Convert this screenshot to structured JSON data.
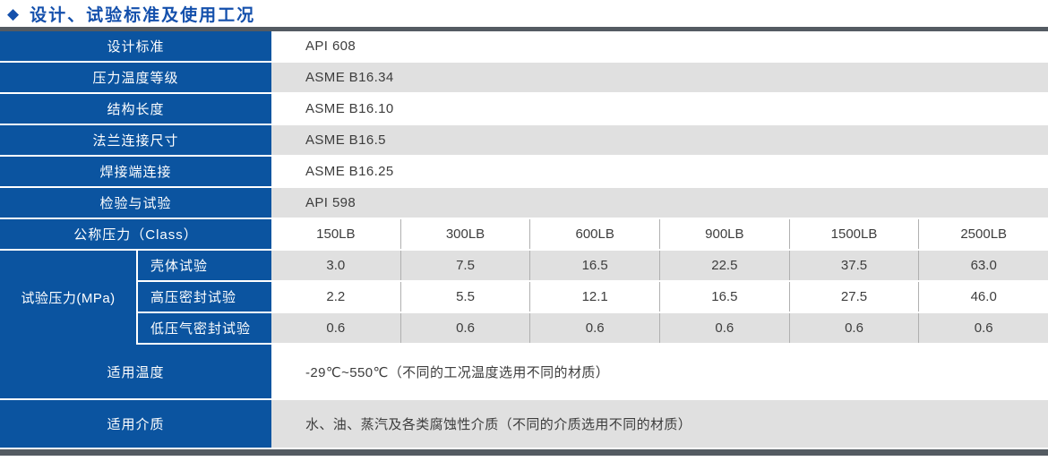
{
  "colors": {
    "brand_blue": "#0b54a0",
    "title_blue": "#1450ac",
    "row_gray": "#e0e0e0",
    "bar_dark": "#545b62",
    "divider_gray": "#b0b0b0",
    "value_text": "#3d3d3d"
  },
  "header": {
    "bullet_glyph": "◆",
    "title": "设计、试验标准及使用工况"
  },
  "table": {
    "standard_rows": [
      {
        "label": "设计标准",
        "value": "API 608"
      },
      {
        "label": "压力温度等级",
        "value": "ASME B16.34"
      },
      {
        "label": "结构长度",
        "value": "ASME B16.10"
      },
      {
        "label": "法兰连接尺寸",
        "value": "ASME B16.5"
      },
      {
        "label": "焊接端连接",
        "value": "ASME B16.25"
      },
      {
        "label": "检验与试验",
        "value": "API 598"
      }
    ],
    "class_row": {
      "label": "公称压力（Class）",
      "values": [
        "150LB",
        "300LB",
        "600LB",
        "900LB",
        "1500LB",
        "2500LB"
      ]
    },
    "test_pressure": {
      "label": "试验压力(MPa)",
      "rows": [
        {
          "label": "壳体试验",
          "values": [
            "3.0",
            "7.5",
            "16.5",
            "22.5",
            "37.5",
            "63.0"
          ]
        },
        {
          "label": "高压密封试验",
          "values": [
            "2.2",
            "5.5",
            "12.1",
            "16.5",
            "27.5",
            "46.0"
          ]
        },
        {
          "label": "低压气密封试验",
          "values": [
            "0.6",
            "0.6",
            "0.6",
            "0.6",
            "0.6",
            "0.6"
          ]
        }
      ]
    },
    "temperature_row": {
      "label": "适用温度",
      "value": "-29℃~550℃（不同的工况温度选用不同的材质）"
    },
    "medium_row": {
      "label": "适用介质",
      "value": "水、油、蒸汽及各类腐蚀性介质（不同的介质选用不同的材质）"
    }
  }
}
